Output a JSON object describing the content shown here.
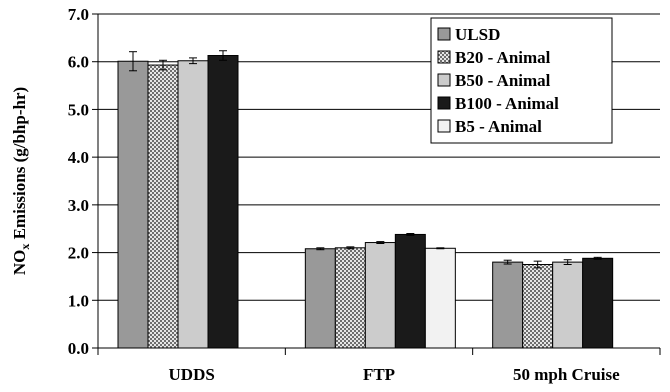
{
  "chart_data": {
    "type": "bar",
    "ylabel_main": "NO",
    "ylabel_sub": "x",
    "ylabel_rest": " Emissions (g/bhp-hr)",
    "ylim": [
      0,
      7
    ],
    "yticks": [
      "0.0",
      "1.0",
      "2.0",
      "3.0",
      "4.0",
      "5.0",
      "6.0",
      "7.0"
    ],
    "ytick_values": [
      0,
      1,
      2,
      3,
      4,
      5,
      6,
      7
    ],
    "grid": true,
    "legend_position": "top-right",
    "categories": [
      "UDDS",
      "FTP",
      "50 mph Cruise"
    ],
    "series": [
      {
        "name": "ULSD",
        "fill": "#999999",
        "pattern": "solid",
        "values": [
          6.01,
          2.08,
          1.8
        ],
        "errors": [
          0.2,
          0.02,
          0.04
        ]
      },
      {
        "name": "B20 - Animal",
        "fill": "#b3b3b3",
        "pattern": "checker",
        "values": [
          5.93,
          2.1,
          1.75
        ],
        "errors": [
          0.1,
          0.02,
          0.07
        ]
      },
      {
        "name": "B50 - Animal",
        "fill": "#cccccc",
        "pattern": "solid",
        "values": [
          6.02,
          2.21,
          1.8
        ],
        "errors": [
          0.06,
          0.02,
          0.05
        ]
      },
      {
        "name": "B100 - Animal",
        "fill": "#1a1a1a",
        "pattern": "solid",
        "values": [
          6.13,
          2.38,
          1.88
        ],
        "errors": [
          0.1,
          0.02,
          0.02
        ]
      },
      {
        "name": "B5 - Animal",
        "fill": "#f2f2f2",
        "pattern": "solid",
        "values": [
          null,
          2.09,
          null
        ],
        "errors": [
          null,
          0.01,
          null
        ]
      }
    ]
  }
}
